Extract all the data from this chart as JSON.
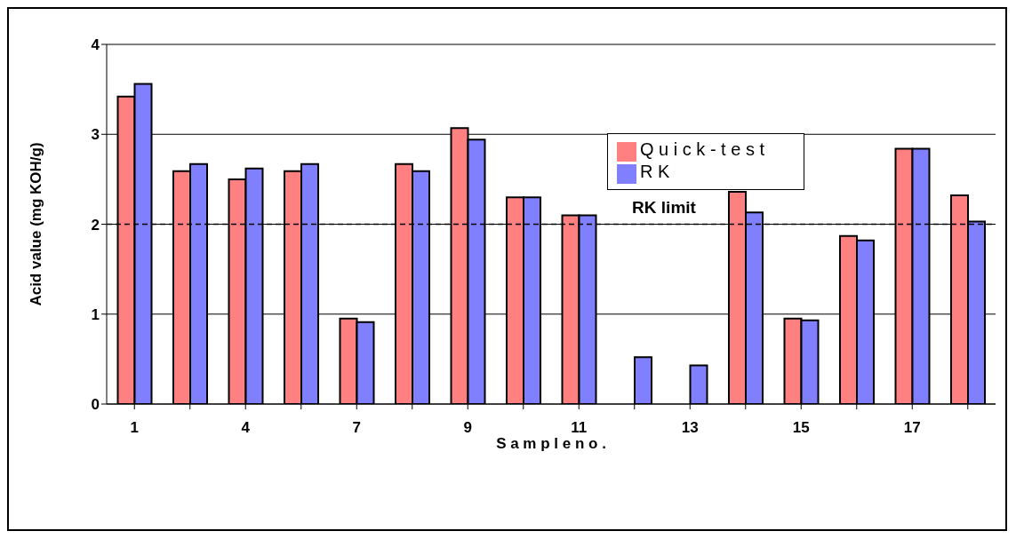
{
  "chart_data": {
    "type": "bar",
    "xlabel": "S a m p l e  n o .",
    "ylabel": "Acid value (mg KOH/g)",
    "categories": [
      "1",
      null,
      "4",
      null,
      "7",
      null,
      "9",
      null,
      "11",
      null,
      "13",
      null,
      "15",
      null,
      "17",
      null
    ],
    "series": [
      {
        "name": "Q u i c k - t e s t",
        "color": "#ff8080",
        "values": [
          3.42,
          2.59,
          2.5,
          2.59,
          0.95,
          2.67,
          3.07,
          2.3,
          2.1,
          null,
          null,
          2.36,
          0.95,
          1.87,
          2.84,
          2.32
        ]
      },
      {
        "name": "R K",
        "color": "#8080ff",
        "values": [
          3.56,
          2.67,
          2.62,
          2.67,
          0.91,
          2.59,
          2.94,
          2.3,
          2.1,
          0.52,
          0.43,
          2.13,
          0.93,
          1.82,
          2.84,
          2.03
        ]
      }
    ],
    "ylim": [
      0,
      4
    ],
    "yticks": [
      0,
      1,
      2,
      3,
      4
    ],
    "grid": "y",
    "legend": "top right",
    "ref_lines": [
      {
        "axis": "y",
        "value": 2,
        "label": "RK limit",
        "color": "#000000",
        "line_style": "dashed"
      }
    ]
  }
}
